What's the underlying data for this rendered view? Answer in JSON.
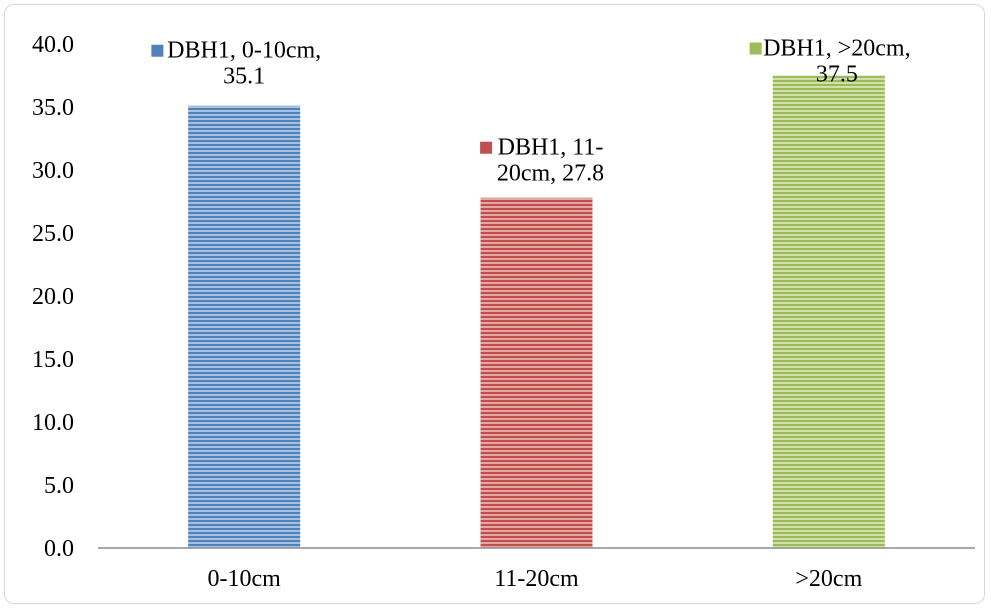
{
  "chart_data": {
    "type": "bar",
    "categories": [
      "0-10cm",
      "11-20cm",
      ">20cm"
    ],
    "series": [
      {
        "name": "DBH1",
        "values": [
          35.1,
          27.8,
          37.5
        ]
      }
    ],
    "bar_colors": [
      "#4f81bd",
      "#c0504d",
      "#9bbb59"
    ],
    "data_labels": [
      {
        "lines": [
          "DBH1, 0-10cm,",
          "35.1"
        ]
      },
      {
        "lines": [
          "DBH1, 11-",
          "20cm, 27.8"
        ]
      },
      {
        "lines": [
          "DBH1, >20cm,",
          "37.5"
        ]
      }
    ],
    "y_ticks": [
      "0.0",
      "5.0",
      "10.0",
      "15.0",
      "20.0",
      "25.0",
      "30.0",
      "35.0",
      "40.0"
    ],
    "ylim": [
      0,
      40
    ],
    "grid": false,
    "legend": "none",
    "title": "",
    "xlabel": "",
    "ylabel": ""
  }
}
